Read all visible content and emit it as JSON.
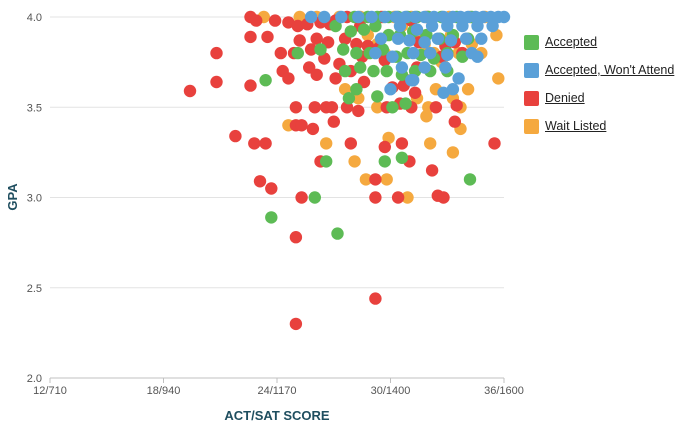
{
  "chart_data": {
    "type": "scatter",
    "title": "",
    "xlabel": "ACT/SAT SCORE",
    "ylabel": "GPA",
    "xlim": [
      12,
      36
    ],
    "ylim": [
      2.0,
      4.0
    ],
    "x_ticks": [
      {
        "value": 12,
        "label": "12/710"
      },
      {
        "value": 18,
        "label": "18/940"
      },
      {
        "value": 24,
        "label": "24/1170"
      },
      {
        "value": 30,
        "label": "30/1400"
      },
      {
        "value": 36,
        "label": "36/1600"
      }
    ],
    "y_ticks": [
      {
        "value": 2.0,
        "label": "2.0"
      },
      {
        "value": 2.5,
        "label": "2.5"
      },
      {
        "value": 3.0,
        "label": "3.0"
      },
      {
        "value": 3.5,
        "label": "3.5"
      },
      {
        "value": 4.0,
        "label": "4.0"
      }
    ],
    "grid": "horizontal",
    "legend_position": "right",
    "series": [
      {
        "name": "Wait Listed",
        "color": "#f5a93f",
        "points": [
          [
            23.3,
            4.0
          ],
          [
            25.2,
            4.0
          ],
          [
            26.1,
            4.0
          ],
          [
            27.3,
            4.0
          ],
          [
            28.4,
            4.0
          ],
          [
            29.6,
            4.0
          ],
          [
            30.2,
            4.0
          ],
          [
            31.1,
            4.0
          ],
          [
            32.0,
            4.0
          ],
          [
            33.1,
            4.0
          ],
          [
            34.2,
            4.0
          ],
          [
            35.0,
            4.0
          ],
          [
            28.8,
            3.9
          ],
          [
            29.3,
            3.85
          ],
          [
            29.7,
            3.8
          ],
          [
            30.6,
            3.95
          ],
          [
            31.3,
            3.9
          ],
          [
            31.8,
            3.85
          ],
          [
            32.3,
            3.8
          ],
          [
            32.7,
            3.75
          ],
          [
            33.2,
            3.9
          ],
          [
            33.6,
            3.8
          ],
          [
            34.3,
            3.85
          ],
          [
            34.8,
            3.8
          ],
          [
            35.6,
            3.9
          ],
          [
            27.6,
            3.6
          ],
          [
            28.3,
            3.55
          ],
          [
            30.9,
            3.65
          ],
          [
            31.4,
            3.55
          ],
          [
            31.9,
            3.45
          ],
          [
            32.4,
            3.6
          ],
          [
            33.3,
            3.55
          ],
          [
            33.7,
            3.5
          ],
          [
            34.1,
            3.6
          ],
          [
            35.7,
            3.66
          ],
          [
            29.3,
            3.5
          ],
          [
            32.0,
            3.5
          ],
          [
            33.7,
            3.38
          ],
          [
            33.3,
            3.25
          ],
          [
            32.1,
            3.3
          ],
          [
            29.9,
            3.33
          ],
          [
            26.6,
            3.3
          ],
          [
            28.7,
            3.1
          ],
          [
            29.8,
            3.1
          ],
          [
            28.1,
            3.2
          ],
          [
            24.6,
            3.4
          ],
          [
            30.9,
            3.0
          ]
        ]
      },
      {
        "name": "Denied",
        "color": "#e8413d",
        "points": [
          [
            22.6,
            4.0
          ],
          [
            22.9,
            3.98
          ],
          [
            23.9,
            3.98
          ],
          [
            24.6,
            3.97
          ],
          [
            25.1,
            3.95
          ],
          [
            25.6,
            3.96
          ],
          [
            26.3,
            3.97
          ],
          [
            26.8,
            3.96
          ],
          [
            27.1,
            3.98
          ],
          [
            27.7,
            4.0
          ],
          [
            28.4,
            3.95
          ],
          [
            29.5,
            4.0
          ],
          [
            31.1,
            3.98
          ],
          [
            31.9,
            4.0
          ],
          [
            22.6,
            3.89
          ],
          [
            23.5,
            3.89
          ],
          [
            25.2,
            3.87
          ],
          [
            26.1,
            3.88
          ],
          [
            26.7,
            3.86
          ],
          [
            27.6,
            3.88
          ],
          [
            28.2,
            3.85
          ],
          [
            28.8,
            3.84
          ],
          [
            29.4,
            3.83
          ],
          [
            31.5,
            3.86
          ],
          [
            32.9,
            3.84
          ],
          [
            33.4,
            3.86
          ],
          [
            20.8,
            3.8
          ],
          [
            24.2,
            3.8
          ],
          [
            24.9,
            3.8
          ],
          [
            25.8,
            3.82
          ],
          [
            26.5,
            3.77
          ],
          [
            27.3,
            3.74
          ],
          [
            28.5,
            3.78
          ],
          [
            29.7,
            3.76
          ],
          [
            31.4,
            3.72
          ],
          [
            32.7,
            3.78
          ],
          [
            33.8,
            3.8
          ],
          [
            19.4,
            3.59
          ],
          [
            20.8,
            3.64
          ],
          [
            22.6,
            3.62
          ],
          [
            24.3,
            3.7
          ],
          [
            24.6,
            3.66
          ],
          [
            25.7,
            3.72
          ],
          [
            26.1,
            3.68
          ],
          [
            27.1,
            3.66
          ],
          [
            27.9,
            3.7
          ],
          [
            28.6,
            3.64
          ],
          [
            30.1,
            3.61
          ],
          [
            30.7,
            3.62
          ],
          [
            31.3,
            3.58
          ],
          [
            25.0,
            3.5
          ],
          [
            26.0,
            3.5
          ],
          [
            26.6,
            3.5
          ],
          [
            26.9,
            3.5
          ],
          [
            27.7,
            3.5
          ],
          [
            28.3,
            3.48
          ],
          [
            29.8,
            3.5
          ],
          [
            30.5,
            3.52
          ],
          [
            31.1,
            3.5
          ],
          [
            32.4,
            3.5
          ],
          [
            33.5,
            3.51
          ],
          [
            25.0,
            3.4
          ],
          [
            25.3,
            3.4
          ],
          [
            25.9,
            3.38
          ],
          [
            27.0,
            3.42
          ],
          [
            27.9,
            3.3
          ],
          [
            29.7,
            3.28
          ],
          [
            30.6,
            3.3
          ],
          [
            33.4,
            3.42
          ],
          [
            35.5,
            3.3
          ],
          [
            21.8,
            3.34
          ],
          [
            22.8,
            3.3
          ],
          [
            23.4,
            3.3
          ],
          [
            26.3,
            3.2
          ],
          [
            29.2,
            3.1
          ],
          [
            31.0,
            3.2
          ],
          [
            32.2,
            3.15
          ],
          [
            23.1,
            3.09
          ],
          [
            23.7,
            3.05
          ],
          [
            25.3,
            3.0
          ],
          [
            29.2,
            3.0
          ],
          [
            30.4,
            3.0
          ],
          [
            32.5,
            3.01
          ],
          [
            32.8,
            3.0
          ],
          [
            25.0,
            2.78
          ],
          [
            29.2,
            2.44
          ],
          [
            25.0,
            2.3
          ]
        ]
      },
      {
        "name": "Accepted",
        "color": "#5dbb55",
        "points": [
          [
            28.1,
            4.0
          ],
          [
            28.8,
            4.0
          ],
          [
            29.3,
            4.0
          ],
          [
            29.9,
            4.0
          ],
          [
            30.4,
            4.0
          ],
          [
            30.9,
            4.0
          ],
          [
            31.4,
            4.0
          ],
          [
            32.0,
            4.0
          ],
          [
            32.7,
            4.0
          ],
          [
            33.5,
            4.0
          ],
          [
            34.3,
            4.0
          ],
          [
            27.1,
            3.95
          ],
          [
            27.9,
            3.92
          ],
          [
            28.6,
            3.93
          ],
          [
            29.2,
            3.95
          ],
          [
            29.9,
            3.9
          ],
          [
            30.5,
            3.9
          ],
          [
            31.2,
            3.92
          ],
          [
            31.9,
            3.9
          ],
          [
            32.6,
            3.88
          ],
          [
            33.3,
            3.9
          ],
          [
            34.1,
            3.88
          ],
          [
            27.5,
            3.82
          ],
          [
            28.2,
            3.8
          ],
          [
            28.9,
            3.8
          ],
          [
            29.6,
            3.82
          ],
          [
            30.3,
            3.78
          ],
          [
            30.9,
            3.8
          ],
          [
            31.6,
            3.79
          ],
          [
            32.3,
            3.77
          ],
          [
            33.0,
            3.8
          ],
          [
            33.8,
            3.78
          ],
          [
            26.3,
            3.82
          ],
          [
            25.1,
            3.8
          ],
          [
            27.6,
            3.7
          ],
          [
            28.4,
            3.72
          ],
          [
            29.1,
            3.7
          ],
          [
            29.8,
            3.7
          ],
          [
            30.6,
            3.68
          ],
          [
            31.3,
            3.7
          ],
          [
            32.1,
            3.7
          ],
          [
            33.0,
            3.7
          ],
          [
            23.4,
            3.65
          ],
          [
            28.2,
            3.6
          ],
          [
            27.8,
            3.55
          ],
          [
            29.3,
            3.56
          ],
          [
            30.8,
            3.52
          ],
          [
            30.1,
            3.5
          ],
          [
            30.6,
            3.22
          ],
          [
            29.7,
            3.2
          ],
          [
            26.6,
            3.2
          ],
          [
            34.2,
            3.1
          ],
          [
            26.0,
            3.0
          ],
          [
            23.7,
            2.89
          ],
          [
            27.2,
            2.8
          ]
        ]
      },
      {
        "name": "Accepted, Won't Attend",
        "color": "#5aa0d8",
        "points": [
          [
            25.8,
            4.0
          ],
          [
            26.5,
            4.0
          ],
          [
            27.4,
            4.0
          ],
          [
            28.3,
            4.0
          ],
          [
            29.0,
            4.0
          ],
          [
            29.7,
            4.0
          ],
          [
            30.3,
            4.0
          ],
          [
            30.8,
            4.0
          ],
          [
            31.3,
            4.0
          ],
          [
            31.8,
            4.0
          ],
          [
            32.3,
            4.0
          ],
          [
            32.8,
            4.0
          ],
          [
            33.3,
            4.0
          ],
          [
            33.7,
            4.0
          ],
          [
            34.1,
            4.0
          ],
          [
            34.5,
            4.0
          ],
          [
            34.9,
            4.0
          ],
          [
            35.3,
            4.0
          ],
          [
            35.7,
            4.0
          ],
          [
            36.0,
            4.0
          ],
          [
            30.5,
            3.95
          ],
          [
            31.4,
            3.93
          ],
          [
            32.2,
            3.95
          ],
          [
            33.0,
            3.95
          ],
          [
            33.8,
            3.95
          ],
          [
            34.6,
            3.95
          ],
          [
            35.4,
            3.95
          ],
          [
            29.5,
            3.88
          ],
          [
            30.4,
            3.88
          ],
          [
            31.0,
            3.87
          ],
          [
            31.8,
            3.86
          ],
          [
            32.5,
            3.88
          ],
          [
            33.2,
            3.87
          ],
          [
            34.0,
            3.88
          ],
          [
            34.8,
            3.88
          ],
          [
            29.2,
            3.8
          ],
          [
            30.1,
            3.78
          ],
          [
            31.2,
            3.8
          ],
          [
            32.1,
            3.8
          ],
          [
            33.0,
            3.79
          ],
          [
            34.3,
            3.8
          ],
          [
            34.6,
            3.78
          ],
          [
            30.6,
            3.72
          ],
          [
            31.8,
            3.72
          ],
          [
            32.9,
            3.72
          ],
          [
            33.6,
            3.66
          ],
          [
            31.1,
            3.65
          ],
          [
            30.0,
            3.6
          ],
          [
            32.8,
            3.58
          ],
          [
            33.3,
            3.6
          ],
          [
            31.2,
            3.65
          ]
        ]
      }
    ]
  }
}
